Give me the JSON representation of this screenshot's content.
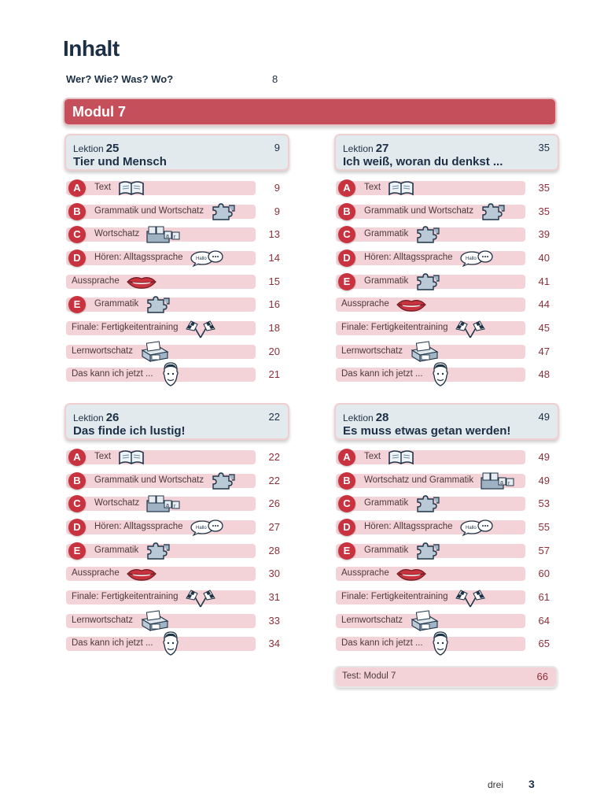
{
  "title": "Inhalt",
  "intro": {
    "label": "Wer? Wie? Was? Wo?",
    "page": "8"
  },
  "modul": "Modul 7",
  "lektion_word": "Lektion",
  "lessons": [
    {
      "num": "25",
      "title": "Tier und Mensch",
      "page": "9",
      "items": [
        {
          "letter": "A",
          "label": "Text",
          "page": "9",
          "icon": "book-icon"
        },
        {
          "letter": "B",
          "label": "Grammatik und Wortschatz",
          "page": "9",
          "icon": "puzzle-icon"
        },
        {
          "letter": "C",
          "label": "Wortschatz",
          "page": "13",
          "icon": "scrabble-tiles-icon"
        },
        {
          "letter": "D",
          "label": "Hören: Alltagssprache",
          "page": "14",
          "icon": "speech-bubbles-icon"
        },
        {
          "letter": "",
          "label": "Aussprache",
          "page": "15",
          "icon": "lips-icon"
        },
        {
          "letter": "E",
          "label": "Grammatik",
          "page": "16",
          "icon": "puzzle-icon"
        },
        {
          "letter": "",
          "label": "Finale: Fertigkeitentraining",
          "page": "18",
          "icon": "checkered-flags-icon"
        },
        {
          "letter": "",
          "label": "Lernwortschatz",
          "page": "20",
          "icon": "card-box-icon"
        },
        {
          "letter": "",
          "label": "Das kann ich jetzt ...",
          "page": "21",
          "icon": "face-icon"
        }
      ]
    },
    {
      "num": "27",
      "title": "Ich weiß, woran du denkst ...",
      "page": "35",
      "items": [
        {
          "letter": "A",
          "label": "Text",
          "page": "35",
          "icon": "book-icon"
        },
        {
          "letter": "B",
          "label": "Grammatik und Wortschatz",
          "page": "35",
          "icon": "puzzle-icon"
        },
        {
          "letter": "C",
          "label": "Grammatik",
          "page": "39",
          "icon": "puzzle-icon"
        },
        {
          "letter": "D",
          "label": "Hören: Alltagssprache",
          "page": "40",
          "icon": "speech-bubbles-icon"
        },
        {
          "letter": "E",
          "label": "Grammatik",
          "page": "41",
          "icon": "puzzle-icon"
        },
        {
          "letter": "",
          "label": "Aussprache",
          "page": "44",
          "icon": "lips-icon"
        },
        {
          "letter": "",
          "label": "Finale: Fertigkeitentraining",
          "page": "45",
          "icon": "checkered-flags-icon"
        },
        {
          "letter": "",
          "label": "Lernwortschatz",
          "page": "47",
          "icon": "card-box-icon"
        },
        {
          "letter": "",
          "label": "Das kann ich jetzt ...",
          "page": "48",
          "icon": "face-icon"
        }
      ]
    },
    {
      "num": "26",
      "title": "Das finde ich lustig!",
      "page": "22",
      "items": [
        {
          "letter": "A",
          "label": "Text",
          "page": "22",
          "icon": "book-icon"
        },
        {
          "letter": "B",
          "label": "Grammatik und Wortschatz",
          "page": "22",
          "icon": "puzzle-icon"
        },
        {
          "letter": "C",
          "label": "Wortschatz",
          "page": "26",
          "icon": "scrabble-tiles-icon"
        },
        {
          "letter": "D",
          "label": "Hören: Alltagssprache",
          "page": "27",
          "icon": "speech-bubbles-icon"
        },
        {
          "letter": "E",
          "label": "Grammatik",
          "page": "28",
          "icon": "puzzle-icon"
        },
        {
          "letter": "",
          "label": "Aussprache",
          "page": "30",
          "icon": "lips-icon"
        },
        {
          "letter": "",
          "label": "Finale: Fertigkeitentraining",
          "page": "31",
          "icon": "checkered-flags-icon"
        },
        {
          "letter": "",
          "label": "Lernwortschatz",
          "page": "33",
          "icon": "card-box-icon"
        },
        {
          "letter": "",
          "label": "Das kann ich jetzt ...",
          "page": "34",
          "icon": "face-icon"
        }
      ]
    },
    {
      "num": "28",
      "title": "Es muss etwas getan werden!",
      "page": "49",
      "items": [
        {
          "letter": "A",
          "label": "Text",
          "page": "49",
          "icon": "book-icon"
        },
        {
          "letter": "B",
          "label": "Wortschatz und Grammatik",
          "page": "49",
          "icon": "scrabble-tiles-icon"
        },
        {
          "letter": "C",
          "label": "Grammatik",
          "page": "53",
          "icon": "puzzle-icon"
        },
        {
          "letter": "D",
          "label": "Hören: Alltagssprache",
          "page": "55",
          "icon": "speech-bubbles-icon"
        },
        {
          "letter": "E",
          "label": "Grammatik",
          "page": "57",
          "icon": "puzzle-icon"
        },
        {
          "letter": "",
          "label": "Aussprache",
          "page": "60",
          "icon": "lips-icon"
        },
        {
          "letter": "",
          "label": "Finale: Fertigkeitentraining",
          "page": "61",
          "icon": "checkered-flags-icon"
        },
        {
          "letter": "",
          "label": "Lernwortschatz",
          "page": "64",
          "icon": "card-box-icon"
        },
        {
          "letter": "",
          "label": "Das kann ich jetzt ...",
          "page": "65",
          "icon": "face-icon"
        }
      ]
    }
  ],
  "test": {
    "label": "Test: Modul 7",
    "page": "66"
  },
  "footer": {
    "word": "drei",
    "number": "3"
  },
  "colors": {
    "modul_bar": "#c5505c",
    "letter_badge": "#c8333f",
    "row_bar": "#f4d3d8",
    "lesson_header": "#e2eaee",
    "page_number": "#8c2f38"
  }
}
